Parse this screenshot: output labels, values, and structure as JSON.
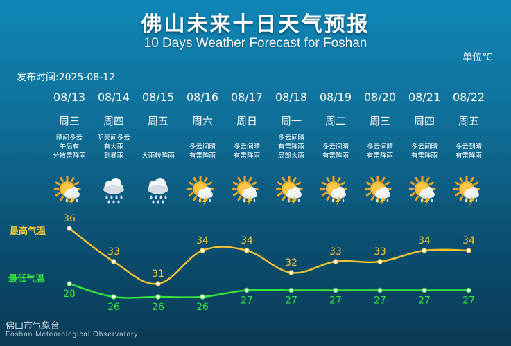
{
  "title_zh": "佛山未来十日天气预报",
  "title_en": "10 Days Weather Forecast for Foshan",
  "unit": "单位℃",
  "publish_label": "发布时间:",
  "publish_date": "2025-08-12",
  "legend": {
    "high": "最高气温",
    "low": "最低气温"
  },
  "colors": {
    "high": "#f2c233",
    "low": "#33e63a",
    "sun": "#f5a623"
  },
  "footer": {
    "zh": "佛山市气象台",
    "en": "Foshan Meteorological Observatory"
  },
  "days": [
    {
      "date": "08/13",
      "dow": "周三",
      "desc": [
        "晴间多云",
        "午后有",
        "分散雷阵雨"
      ],
      "icon": "sun-thunderstorm-icon"
    },
    {
      "date": "08/14",
      "dow": "周四",
      "desc": [
        "阴天间多云",
        "有大雨",
        "到暴雨"
      ],
      "icon": "cloud-heavy-rain-icon"
    },
    {
      "date": "08/15",
      "dow": "周五",
      "desc": [
        "",
        "",
        "大雨转阵雨"
      ],
      "icon": "cloud-heavy-rain-icon"
    },
    {
      "date": "08/16",
      "dow": "周六",
      "desc": [
        "",
        "多云间晴",
        "有雷阵雨"
      ],
      "icon": "sun-thunderstorm-icon"
    },
    {
      "date": "08/17",
      "dow": "周日",
      "desc": [
        "",
        "多云间晴",
        "有雷阵雨"
      ],
      "icon": "sun-thunderstorm-icon"
    },
    {
      "date": "08/18",
      "dow": "周一",
      "desc": [
        "多云间晴",
        "有雷阵雨",
        "局部大雨"
      ],
      "icon": "sun-thunderstorm-icon"
    },
    {
      "date": "08/19",
      "dow": "周二",
      "desc": [
        "",
        "多云间晴",
        "有雷阵雨"
      ],
      "icon": "sun-thunderstorm-icon"
    },
    {
      "date": "08/20",
      "dow": "周三",
      "desc": [
        "",
        "多云间晴",
        "有雷阵雨"
      ],
      "icon": "sun-thunderstorm-icon"
    },
    {
      "date": "08/21",
      "dow": "周四",
      "desc": [
        "",
        "多云间晴",
        "有雷阵雨"
      ],
      "icon": "sun-thunderstorm-icon"
    },
    {
      "date": "08/22",
      "dow": "周五",
      "desc": [
        "",
        "多云到晴",
        "有雷阵雨"
      ],
      "icon": "sun-thunderstorm-icon"
    }
  ],
  "chart_data": {
    "type": "line",
    "x": [
      "08/13",
      "08/14",
      "08/15",
      "08/16",
      "08/17",
      "08/18",
      "08/19",
      "08/20",
      "08/21",
      "08/22"
    ],
    "series": [
      {
        "name": "最高气温",
        "values": [
          36,
          33,
          31,
          34,
          34,
          32,
          33,
          33,
          34,
          34
        ]
      },
      {
        "name": "最低气温",
        "values": [
          28,
          26,
          26,
          26,
          27,
          27,
          27,
          27,
          27,
          27
        ]
      }
    ]
  }
}
